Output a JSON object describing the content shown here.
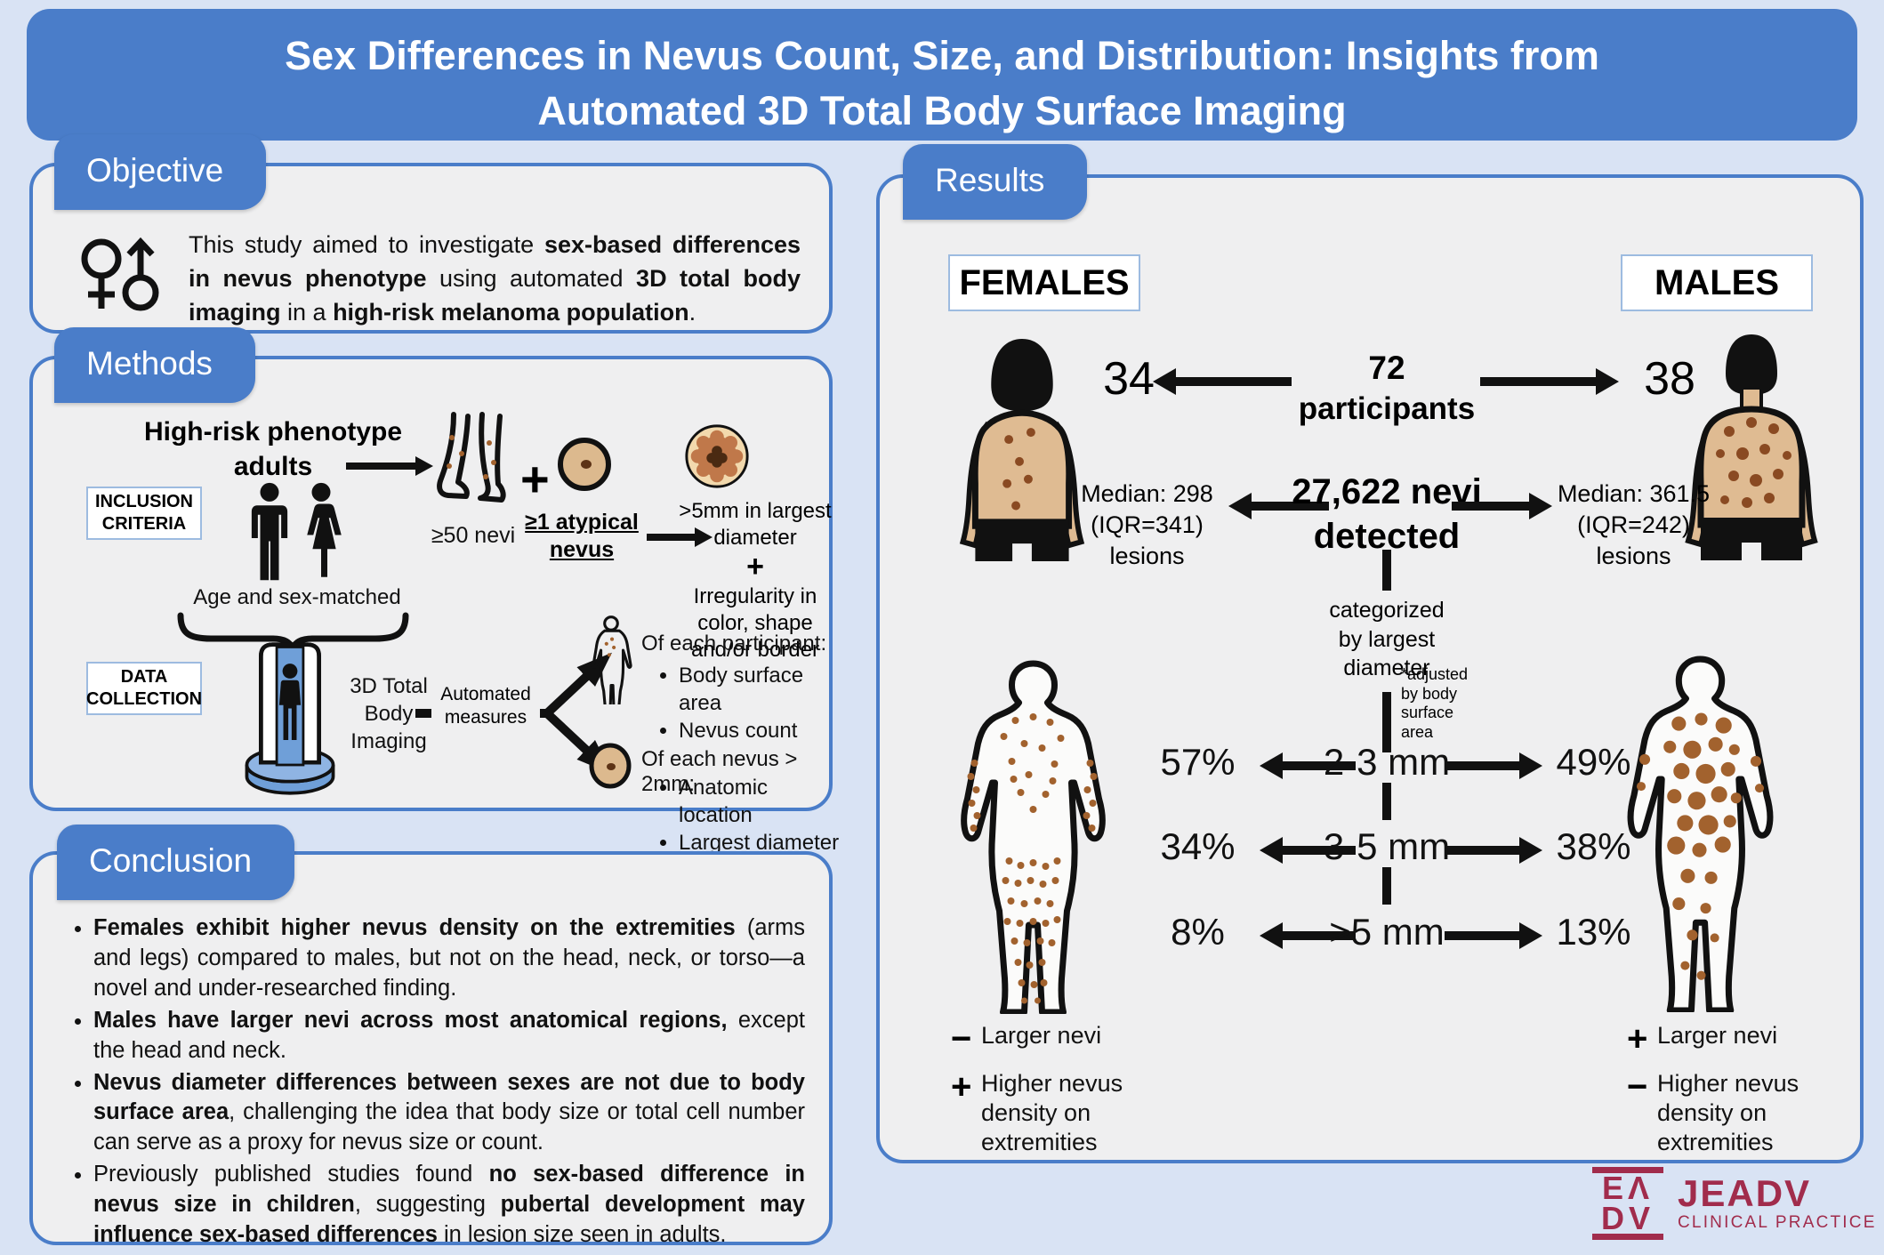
{
  "title": {
    "line1": "Sex Differences in Nevus Count, Size, and Distribution: Insights from",
    "line2": "Automated 3D Total Body Surface Imaging"
  },
  "objective": {
    "tab": "Objective",
    "text_segments": [
      {
        "t": "This study aimed to investigate ",
        "b": false
      },
      {
        "t": "sex-based differences in nevus phenotype",
        "b": true
      },
      {
        "t": " using automated ",
        "b": false
      },
      {
        "t": "3D total body imaging",
        "b": true
      },
      {
        "t": " in a ",
        "b": false
      },
      {
        "t": "high-risk melanoma population",
        "b": true
      },
      {
        "t": ".",
        "b": false
      }
    ]
  },
  "methods": {
    "tab": "Methods",
    "high_risk_label": "High-risk phenotype adults",
    "inclusion_criteria_label": "INCLUSION CRITERIA",
    "nevi_count_label": "≥50 nevi",
    "plus_sign": "+",
    "atypical_label": "≥1 atypical nevus",
    "atypical_criteria_line1": ">5mm in largest diameter",
    "atypical_criteria_plus": "+",
    "atypical_criteria_line2": "Irregularity in color, shape and/or border",
    "age_sex_matched": "Age and sex-matched",
    "data_collection_label": "DATA COLLECTION",
    "imaging_label": "3D Total Body Imaging",
    "automated_label": "Automated measures",
    "participant_header": "Of each participant:",
    "participant_bullets": [
      "Body surface area",
      "Nevus count"
    ],
    "nevus_header": "Of each nevus > 2mm:",
    "nevus_bullets": [
      "Anatomic location",
      "Largest diameter"
    ]
  },
  "conclusion": {
    "tab": "Conclusion",
    "bullets": [
      [
        {
          "t": "Females exhibit higher nevus density on the extremities",
          "b": true
        },
        {
          "t": " (arms and legs) compared to males, but not on the head, neck, or torso—a novel and under-researched finding.",
          "b": false
        }
      ],
      [
        {
          "t": "Males have larger nevi across most anatomical regions,",
          "b": true
        },
        {
          "t": " except the head and neck.",
          "b": false
        }
      ],
      [
        {
          "t": "Nevus diameter differences between sexes are not due to body surface area",
          "b": true
        },
        {
          "t": ", challenging the idea that body size or total cell number can serve as a proxy for nevus size or count.",
          "b": false
        }
      ],
      [
        {
          "t": "Previously published studies found ",
          "b": false
        },
        {
          "t": "no sex-based difference in nevus size in children",
          "b": true
        },
        {
          "t": ", suggesting ",
          "b": false
        },
        {
          "t": "pubertal development may influence sex-based differences",
          "b": true
        },
        {
          "t": " in lesion size seen in adults.",
          "b": false
        }
      ]
    ]
  },
  "results": {
    "tab": "Results",
    "females_label": "FEMALES",
    "males_label": "MALES",
    "participants": {
      "females": "34",
      "males": "38",
      "total_number": "72",
      "total_word": "participants"
    },
    "nevi_total_line1": "27,622 nevi",
    "nevi_total_line2": "detected",
    "female_median_lines": [
      "Median: 298",
      "(IQR=341)",
      "lesions"
    ],
    "male_median_lines": [
      "Median: 361.5",
      "(IQR=242)",
      "lesions"
    ],
    "categorized_lines": [
      "categorized",
      "by largest",
      "diameter"
    ],
    "adjusted_lines": [
      "*adjusted",
      "by body",
      "surface",
      "area"
    ],
    "size_rows": [
      {
        "label": "2-3 mm",
        "female": "57%",
        "male": "49%"
      },
      {
        "label": "3-5 mm",
        "female": "34%",
        "male": "38%"
      },
      {
        "label": ">5 mm",
        "female": "8%",
        "male": "13%"
      }
    ],
    "female_legend": [
      {
        "sign": "−",
        "text": "Larger nevi"
      },
      {
        "sign": "+",
        "text": "Higher nevus density on extremities"
      }
    ],
    "male_legend": [
      {
        "sign": "+",
        "text": "Larger nevi"
      },
      {
        "sign": "−",
        "text": "Higher nevus density on extremities"
      }
    ]
  },
  "logo": {
    "glyph_top": "EΛ",
    "glyph_bottom": "DV",
    "name": "JEADV",
    "subtitle": "CLINICAL PRACTICE"
  },
  "colors": {
    "accent_blue": "#4a7dc9",
    "page_bg": "#d9e3f4",
    "panel_bg": "#efeff0",
    "maroon": "#a12c4c",
    "skin": "#dfbb92",
    "mole_brown": "#a2622e",
    "black": "#111111"
  }
}
